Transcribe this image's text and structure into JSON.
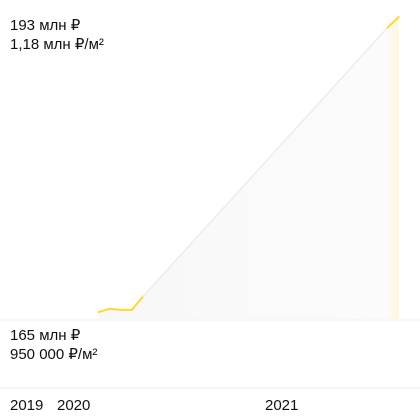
{
  "chart_data": {
    "type": "area",
    "max_price": "193 млн ₽",
    "max_price_per_m2": "1,18 млн ₽/м²",
    "min_price": "165 млн ₽",
    "min_price_per_m2": "950 000 ₽/м²",
    "x_ticks": [
      "2019",
      "2020",
      "2021"
    ],
    "x": [
      "2019-09",
      "2019-10",
      "2019-11",
      "2019-12",
      "2020-01",
      "2021-11",
      "2021-12"
    ],
    "y": [
      165.0,
      165.3,
      165.2,
      165.2,
      166.5,
      192.0,
      193.0
    ],
    "y_unit": "млн ₽",
    "ylim": [
      165,
      193
    ],
    "colors": {
      "line": "#ffd633",
      "line_faded": "#ececec",
      "fill_left": "#f6f6f6",
      "fill_right": "#fff6d0",
      "grid": "#eeeeee"
    }
  }
}
